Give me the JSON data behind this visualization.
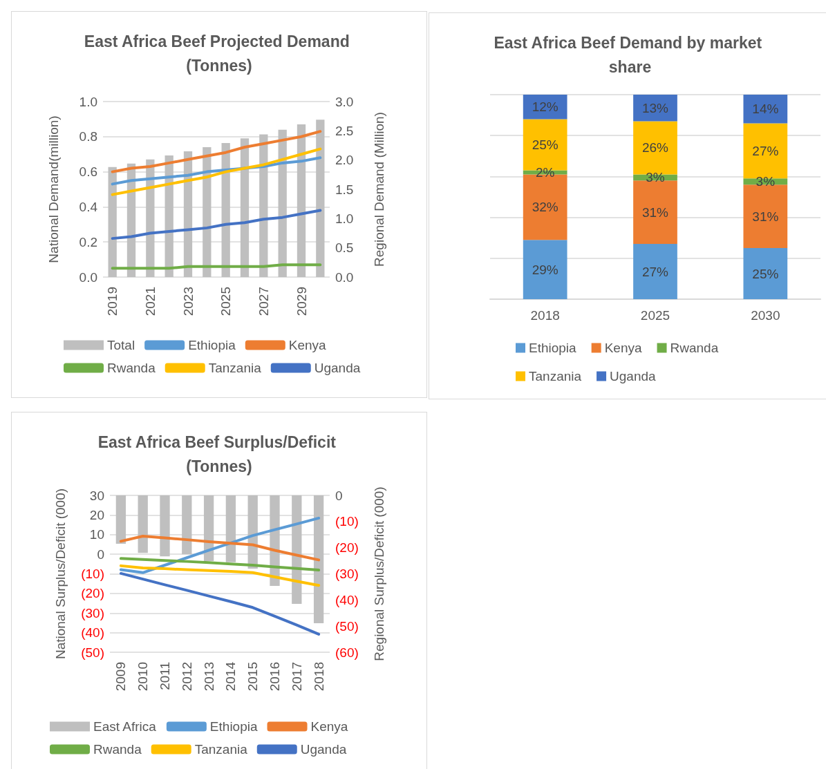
{
  "chart_data": [
    {
      "type": "line",
      "title": "East Africa Beef Projected Demand (Tonnes)",
      "ylabel": "National Demand(million)",
      "y2label": "Regional Demand (Million)",
      "categories": [
        "2019",
        null,
        "2021",
        null,
        "2023",
        null,
        "2025",
        null,
        "2027",
        null,
        "2029",
        null
      ],
      "series": [
        {
          "name": "Total",
          "type": "bar",
          "axis": "y2",
          "color": "#bfbfbf",
          "values": [
            1.88,
            1.94,
            2.01,
            2.08,
            2.15,
            2.22,
            2.29,
            2.37,
            2.44,
            2.52,
            2.61,
            2.69
          ]
        },
        {
          "name": "Ethiopia",
          "color": "#5b9bd5",
          "values": [
            0.53,
            0.55,
            0.56,
            0.57,
            0.58,
            0.6,
            0.61,
            0.62,
            0.63,
            0.65,
            0.66,
            0.68
          ]
        },
        {
          "name": "Kenya",
          "color": "#ed7d31",
          "values": [
            0.6,
            0.62,
            0.63,
            0.65,
            0.67,
            0.69,
            0.71,
            0.74,
            0.76,
            0.78,
            0.8,
            0.83
          ]
        },
        {
          "name": "Rwanda",
          "color": "#70ad47",
          "values": [
            0.05,
            0.05,
            0.05,
            0.05,
            0.06,
            0.06,
            0.06,
            0.06,
            0.06,
            0.07,
            0.07,
            0.07
          ]
        },
        {
          "name": "Tanzania",
          "color": "#ffc000",
          "values": [
            0.47,
            0.49,
            0.51,
            0.53,
            0.55,
            0.57,
            0.6,
            0.62,
            0.64,
            0.67,
            0.7,
            0.73
          ]
        },
        {
          "name": "Uganda",
          "color": "#4472c4",
          "values": [
            0.22,
            0.23,
            0.25,
            0.26,
            0.27,
            0.28,
            0.3,
            0.31,
            0.33,
            0.34,
            0.36,
            0.38
          ]
        }
      ],
      "ylim": [
        0,
        1
      ],
      "yticks": [
        {
          "value": 0,
          "label": "0.0"
        },
        0.2,
        0.4,
        0.6,
        0.8,
        {
          "value": 1,
          "label": "1.0"
        }
      ],
      "y2lim": [
        0,
        3
      ],
      "y2ticks": [
        {
          "value": 0,
          "label": "0.0"
        },
        0.5,
        {
          "value": 1,
          "label": "1.0"
        },
        1.5,
        {
          "value": 2,
          "label": "2.0"
        },
        2.5,
        {
          "value": 3,
          "label": "3.0"
        }
      ],
      "grid": "y",
      "legend": "bottom"
    },
    {
      "type": "bar",
      "title": "East Africa Beef Demand by market share",
      "categories": [
        "2018",
        "2025",
        "2030"
      ],
      "stacked": true,
      "series": [
        {
          "name": "Ethiopia",
          "color": "#5b9bd5",
          "values": [
            0.29,
            0.27,
            0.25
          ],
          "value_labels": [
            "29%",
            "27%",
            "25%"
          ]
        },
        {
          "name": "Kenya",
          "color": "#ed7d31",
          "values": [
            0.32,
            0.31,
            0.31
          ],
          "value_labels": [
            "32%",
            "31%",
            "31%"
          ]
        },
        {
          "name": "Rwanda",
          "color": "#70ad47",
          "values": [
            0.02,
            0.03,
            0.03
          ],
          "value_labels": [
            "2%",
            "3%",
            "3%"
          ]
        },
        {
          "name": "Tanzania",
          "color": "#ffc000",
          "values": [
            0.25,
            0.26,
            0.27
          ],
          "value_labels": [
            "25%",
            "26%",
            "27%"
          ]
        },
        {
          "name": "Uganda",
          "color": "#4472c4",
          "values": [
            0.12,
            0.13,
            0.14
          ],
          "value_labels": [
            "12%",
            "13%",
            "14%"
          ]
        }
      ],
      "tick_labels": "x",
      "grid": "y",
      "legend": "bottom"
    },
    {
      "type": "line",
      "title": "East Africa Beef Surplus/Deficit (Tonnes)",
      "ylabel": "National Surplus/Deficit (000)",
      "y2label": "Regional Surplus/Deficit (000)",
      "categories": [
        "2009",
        "2010",
        "2011",
        "2012",
        "2013",
        "2014",
        "2015",
        "2016",
        "2017",
        "2018"
      ],
      "series": [
        {
          "name": "East Africa",
          "type": "bar",
          "axis": "y2",
          "color": "#bfbfbf",
          "values": [
            -18.5,
            -22,
            -23.3,
            -22.5,
            -25.1,
            -25.6,
            -28,
            -34.6,
            -41.5,
            -48.9
          ]
        },
        {
          "name": "Ethiopia",
          "color": "#5b9bd5",
          "values": [
            -7.9,
            -9.4,
            -5.6,
            -1.8,
            2,
            5.7,
            9.5,
            12.5,
            15.4,
            18.4
          ]
        },
        {
          "name": "Kenya",
          "color": "#ed7d31",
          "values": [
            6.6,
            9.2,
            8.3,
            7.4,
            6.4,
            5.6,
            4.8,
            2,
            -0.5,
            -2.9
          ]
        },
        {
          "name": "Rwanda",
          "color": "#70ad47",
          "values": [
            -2.2,
            -2.7,
            -3.2,
            -3.7,
            -4.3,
            -5,
            -5.6,
            -6.5,
            -7.3,
            -8.1
          ]
        },
        {
          "name": "Tanzania",
          "color": "#ffc000",
          "values": [
            -5.9,
            -7,
            -7.4,
            -7.9,
            -8.3,
            -8.8,
            -9.4,
            -11.6,
            -13.8,
            -15.9
          ]
        },
        {
          "name": "Uganda",
          "color": "#4472c4",
          "values": [
            -9.8,
            -12.7,
            -15.6,
            -18.4,
            -21.3,
            -24.2,
            -27.2,
            -31.6,
            -36.1,
            -40.8
          ]
        }
      ],
      "ylim": [
        -50,
        30
      ],
      "yticks": [
        {
          "value": -50,
          "label": "(50)"
        },
        {
          "value": -40,
          "label": "(40)"
        },
        {
          "value": -30,
          "label": "(30)"
        },
        {
          "value": -20,
          "label": "(20)"
        },
        {
          "value": -10,
          "label": "(10)"
        },
        0,
        10,
        20,
        30
      ],
      "y2lim": [
        -60,
        0
      ],
      "y2ticks": [
        {
          "value": -60,
          "label": "(60)"
        },
        {
          "value": -50,
          "label": "(50)"
        },
        {
          "value": -40,
          "label": "(40)"
        },
        {
          "value": -30,
          "label": "(30)"
        },
        {
          "value": -20,
          "label": "(20)"
        },
        {
          "value": -10,
          "label": "(10)"
        },
        0
      ],
      "grid": "y",
      "legend": "bottom"
    }
  ]
}
